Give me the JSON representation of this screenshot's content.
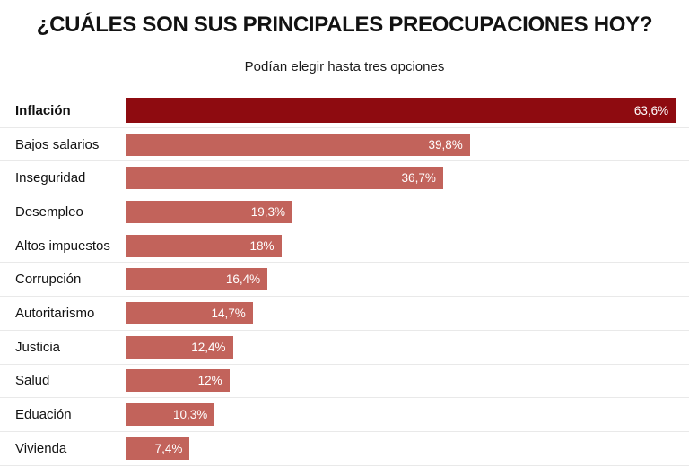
{
  "header": {
    "title": "¿CUÁLES SON SUS PRINCIPALES PREOCUPACIONES HOY?",
    "subtitle": "Podían elegir hasta tres opciones"
  },
  "colors": {
    "highlight_bar": "#8e0b10",
    "bar": "#c2635b",
    "value_text": "#ffffff",
    "separator": "#e9e9e9",
    "text": "#121212"
  },
  "chart_data": {
    "type": "bar",
    "orientation": "horizontal",
    "title": "¿CUÁLES SON SUS PRINCIPALES PREOCUPACIONES HOY?",
    "subtitle": "Podían elegir hasta tres opciones",
    "categories": [
      "Inflación",
      "Bajos salarios",
      "Inseguridad",
      "Desempleo",
      "Altos impuestos",
      "Corrupción",
      "Autoritarismo",
      "Justicia",
      "Salud",
      "Eduación",
      "Vivienda"
    ],
    "values": [
      63.6,
      39.8,
      36.7,
      19.3,
      18,
      16.4,
      14.7,
      12.4,
      12,
      10.3,
      7.4
    ],
    "value_labels": [
      "63,6%",
      "39,8%",
      "36,7%",
      "19,3%",
      "18%",
      "16,4%",
      "14,7%",
      "12,4%",
      "12%",
      "10,3%",
      "7,4%"
    ],
    "unit": "%",
    "xlim": [
      0,
      64.3
    ],
    "highlight_index": 0,
    "value_label_position": "inside-end",
    "grid": false,
    "legend": false
  }
}
